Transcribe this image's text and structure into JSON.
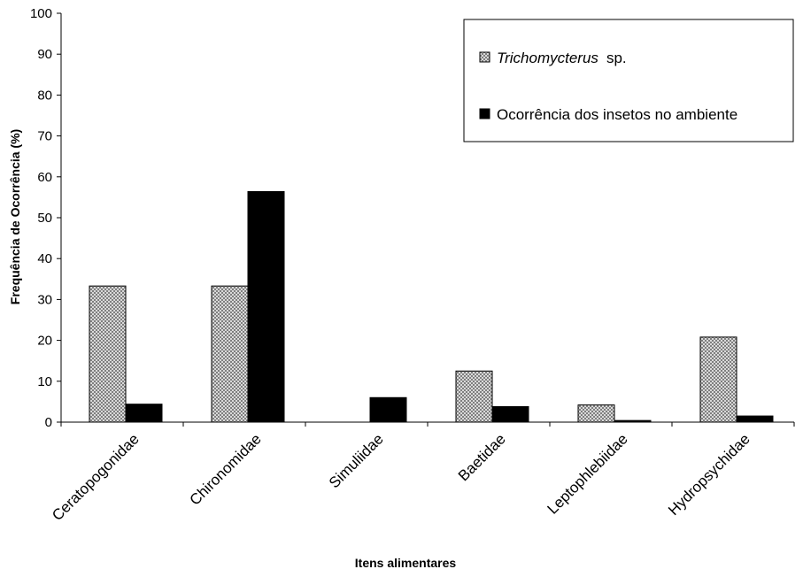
{
  "chart_data": {
    "type": "bar",
    "categories": [
      "Ceratopogonidae",
      "Chironomidae",
      "Simuliidae",
      "Baetidae",
      "Leptophlebiidae",
      "Hydropsychidae"
    ],
    "series": [
      {
        "name_italic": "Trichomycterus",
        "name_suffix": "sp.",
        "values": [
          33.3,
          33.3,
          0,
          12.5,
          4.2,
          20.8
        ],
        "pattern": "checkered-gray"
      },
      {
        "name": "Ocorrência dos insetos no ambiente",
        "values": [
          4.4,
          56.4,
          6.0,
          3.8,
          0.4,
          1.5
        ],
        "pattern": "solid-black"
      }
    ],
    "ylabel": "Frequência de Ocorrência (%)",
    "xlabel": "Itens alimentares",
    "ylim": [
      0,
      100
    ],
    "yticks": [
      "0",
      "10",
      "20",
      "30",
      "40",
      "50",
      "60",
      "70",
      "80",
      "90",
      "100"
    ],
    "grid": false,
    "legend_position": "top-right",
    "colors": {
      "solid": "#000000",
      "checker_light": "#d9d9d9",
      "checker_dark": "#7f7f7f",
      "outline": "#000000"
    }
  }
}
